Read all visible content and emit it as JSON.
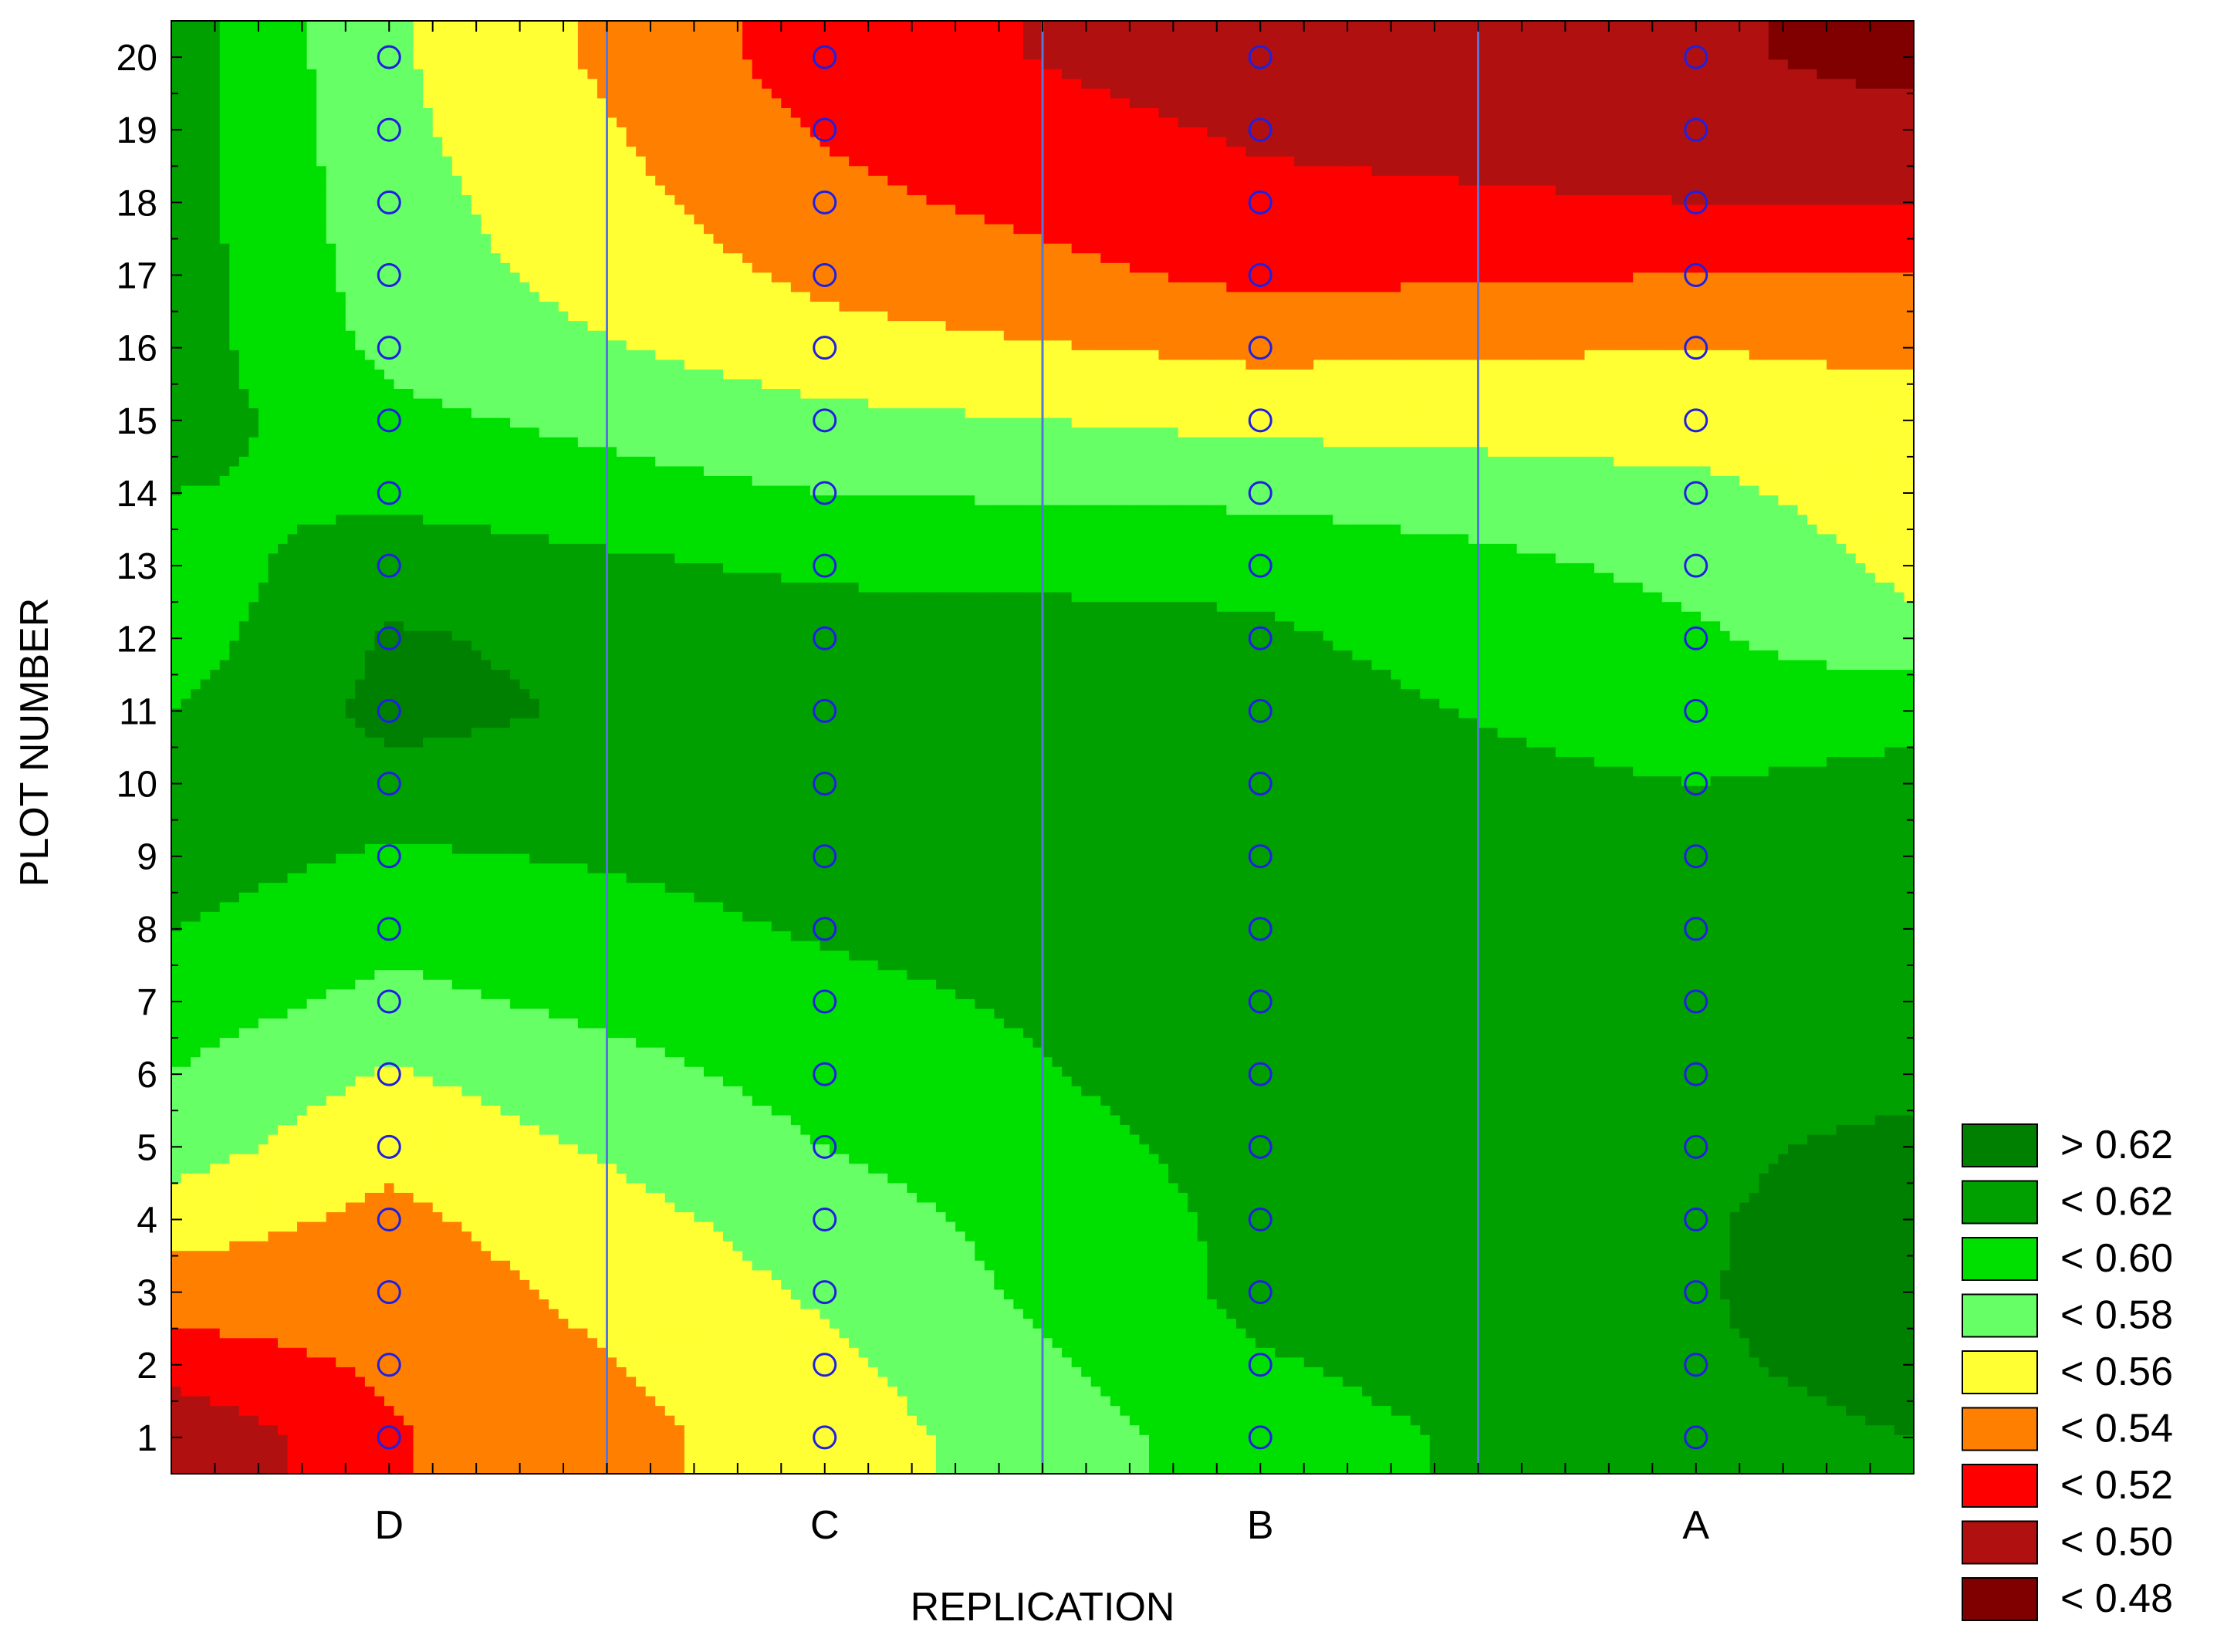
{
  "chart_data": {
    "type": "heatmap",
    "subtype": "filled-contour",
    "title": "",
    "xlabel": "REPLICATION",
    "ylabel": "PLOT NUMBER",
    "x_categories": [
      "D",
      "C",
      "B",
      "A"
    ],
    "y_ticks": [
      "1",
      "2",
      "3",
      "4",
      "5",
      "6",
      "7",
      "8",
      "9",
      "10",
      "11",
      "12",
      "13",
      "14",
      "15",
      "16",
      "17",
      "18",
      "19",
      "20"
    ],
    "ylim": [
      0.5,
      20.5
    ],
    "xlim": [
      0.5,
      4.5
    ],
    "grid": false,
    "category_dividers": true,
    "legend_position": "bottom-right",
    "legend": [
      {
        "label": "> 0.62",
        "color": "#008000"
      },
      {
        "label": "< 0.62",
        "color": "#00A000"
      },
      {
        "label": "< 0.60",
        "color": "#00E000"
      },
      {
        "label": "< 0.58",
        "color": "#66FF66"
      },
      {
        "label": "< 0.56",
        "color": "#FFFF33"
      },
      {
        "label": "< 0.54",
        "color": "#FF8000"
      },
      {
        "label": "< 0.52",
        "color": "#FF0000"
      },
      {
        "label": "< 0.50",
        "color": "#B01010"
      },
      {
        "label": "< 0.48",
        "color": "#800000"
      }
    ],
    "samples_marker": "open circle",
    "marker_color": "#2020E0",
    "edge_columns_estimated": [
      [
        0.48,
        0.51,
        0.53,
        0.55,
        0.57,
        0.58,
        0.59,
        0.6,
        0.61,
        0.61,
        0.6,
        0.59,
        0.59,
        0.6,
        0.61,
        0.61,
        0.61,
        0.61,
        0.61,
        0.61
      ],
      [
        0.62,
        0.625,
        0.628,
        0.63,
        0.625,
        0.615,
        0.605,
        0.6,
        0.602,
        0.605,
        0.595,
        0.565,
        0.555,
        0.55,
        0.55,
        0.535,
        0.52,
        0.5,
        0.49,
        0.47
      ]
    ],
    "values": [
      [
        0.518,
        0.55,
        0.59,
        0.615
      ],
      [
        0.523,
        0.555,
        0.598,
        0.618
      ],
      [
        0.528,
        0.563,
        0.605,
        0.619
      ],
      [
        0.535,
        0.57,
        0.605,
        0.618
      ],
      [
        0.545,
        0.58,
        0.607,
        0.616
      ],
      [
        0.558,
        0.588,
        0.61,
        0.612
      ],
      [
        0.575,
        0.595,
        0.61,
        0.608
      ],
      [
        0.585,
        0.602,
        0.61,
        0.607
      ],
      [
        0.597,
        0.607,
        0.609,
        0.605
      ],
      [
        0.615,
        0.612,
        0.61,
        0.6
      ],
      [
        0.625,
        0.611,
        0.608,
        0.59
      ],
      [
        0.622,
        0.61,
        0.603,
        0.583
      ],
      [
        0.612,
        0.596,
        0.595,
        0.575
      ],
      [
        0.595,
        0.58,
        0.575,
        0.565
      ],
      [
        0.585,
        0.565,
        0.555,
        0.55
      ],
      [
        0.575,
        0.548,
        0.535,
        0.54
      ],
      [
        0.57,
        0.535,
        0.515,
        0.52
      ],
      [
        0.568,
        0.525,
        0.505,
        0.5
      ],
      [
        0.565,
        0.518,
        0.497,
        0.49
      ],
      [
        0.563,
        0.51,
        0.488,
        0.485
      ]
    ]
  }
}
